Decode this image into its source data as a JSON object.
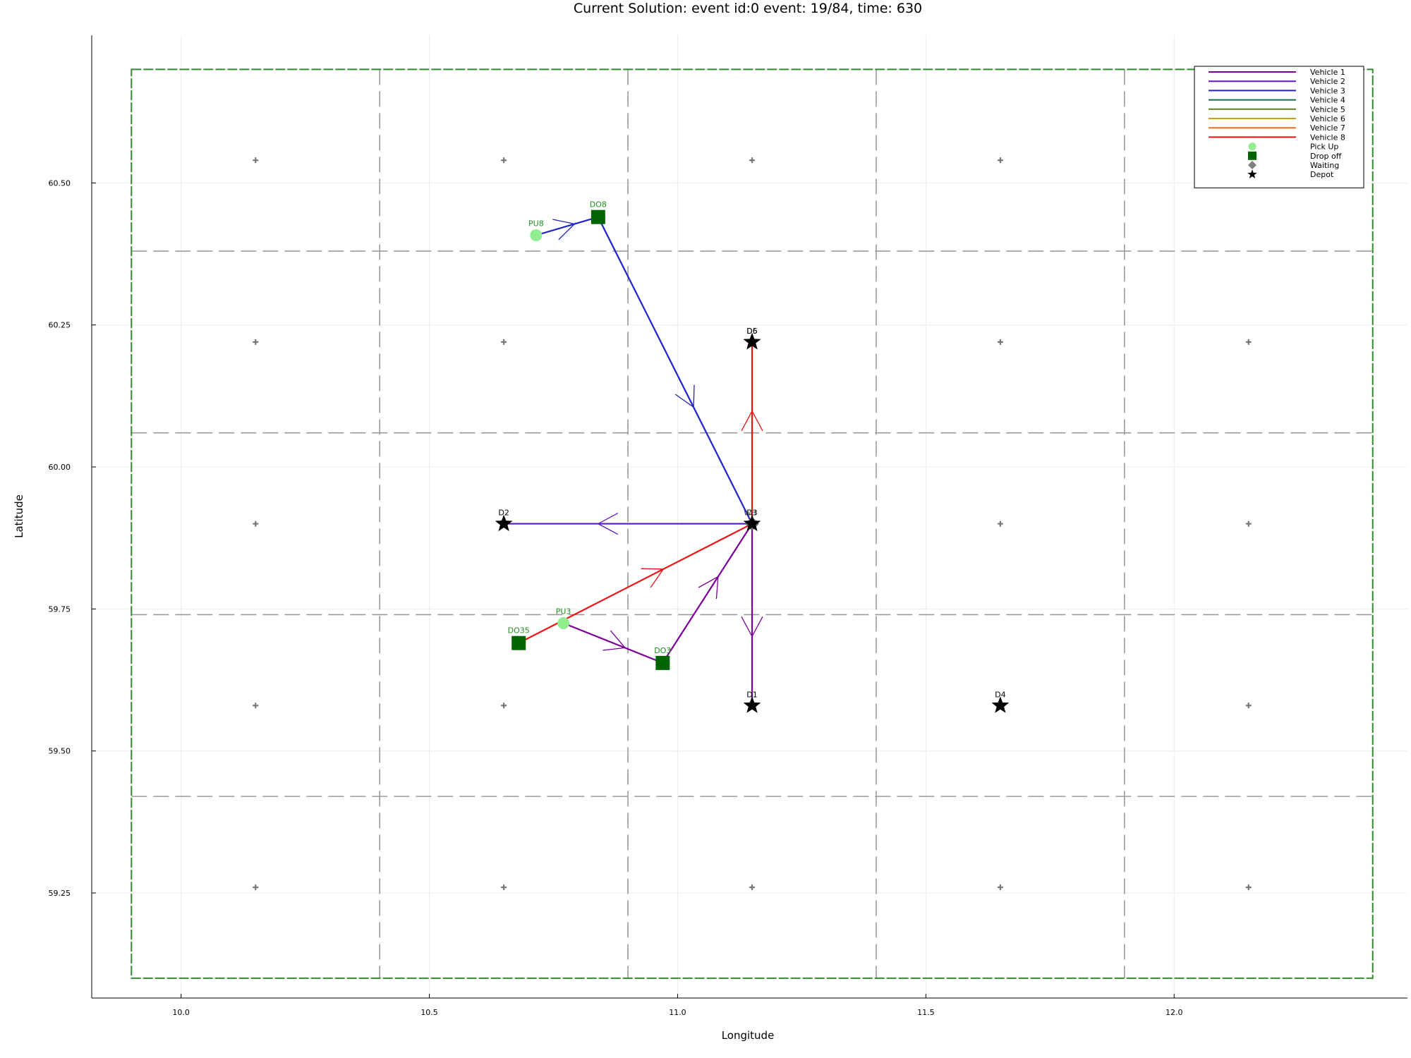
{
  "chart_data": {
    "type": "scatter",
    "title": "Current Solution: event id:0 event: 19/84, time: 630",
    "xlabel": "Longitude",
    "ylabel": "Latitude",
    "xlim": [
      9.82,
      12.47
    ],
    "ylim": [
      59.065,
      60.76
    ],
    "xticks": [
      10.0,
      10.5,
      11.0,
      11.5,
      12.0
    ],
    "xtick_labels": [
      "10.0",
      "10.5",
      "11.0",
      "11.5",
      "12.0"
    ],
    "yticks": [
      59.25,
      59.5,
      59.75,
      60.0,
      60.25,
      60.5
    ],
    "ytick_labels": [
      "59.25",
      "59.50",
      "59.75",
      "60.00",
      "60.25",
      "60.50"
    ],
    "grid": true,
    "legend_position": "top-right",
    "service_area": {
      "x": [
        9.9,
        12.4
      ],
      "y": [
        59.1,
        60.7
      ],
      "color": "#2e8b2e"
    },
    "zone_grid": {
      "x": [
        10.4,
        10.9,
        11.4,
        11.9
      ],
      "y": [
        59.42,
        59.74,
        60.06,
        60.38
      ],
      "color": "#9a9a9a"
    },
    "zone_centers": {
      "x": [
        10.15,
        10.65,
        11.15,
        11.65,
        12.15
      ],
      "y": [
        59.26,
        59.58,
        59.9,
        60.22,
        60.54
      ],
      "color": "#777777"
    },
    "legend": [
      {
        "label": "Vehicle 1",
        "kind": "line",
        "color": "#7b0099"
      },
      {
        "label": "Vehicle 2",
        "kind": "line",
        "color": "#5a17c9"
      },
      {
        "label": "Vehicle 3",
        "kind": "line",
        "color": "#2222cc"
      },
      {
        "label": "Vehicle 4",
        "kind": "line",
        "color": "#1a6b4a"
      },
      {
        "label": "Vehicle 5",
        "kind": "line",
        "color": "#5a7d1a"
      },
      {
        "label": "Vehicle 6",
        "kind": "line",
        "color": "#c9a21a"
      },
      {
        "label": "Vehicle 7",
        "kind": "line",
        "color": "#ee6a1a"
      },
      {
        "label": "Vehicle 8",
        "kind": "line",
        "color": "#ee1111"
      },
      {
        "label": "Pick Up",
        "kind": "circle",
        "color": "#90ee90"
      },
      {
        "label": "Drop off",
        "kind": "square",
        "color": "#006400"
      },
      {
        "label": "Waiting",
        "kind": "diamond",
        "color": "#808080"
      },
      {
        "label": "Depot",
        "kind": "star",
        "color": "#000000"
      }
    ],
    "routes": [
      {
        "vehicle": "Vehicle 1",
        "color": "#7b0099",
        "points": [
          [
            10.77,
            59.725
          ],
          [
            10.97,
            59.655
          ],
          [
            11.15,
            59.9
          ],
          [
            11.15,
            59.58
          ]
        ]
      },
      {
        "vehicle": "Vehicle 2",
        "color": "#5a17c9",
        "points": [
          [
            11.15,
            59.9
          ],
          [
            10.65,
            59.9
          ]
        ]
      },
      {
        "vehicle": "Vehicle 3",
        "color": "#2222cc",
        "points": [
          [
            10.715,
            60.408
          ],
          [
            10.84,
            60.44
          ],
          [
            11.15,
            59.9
          ]
        ]
      },
      {
        "vehicle": "Vehicle 8",
        "color": "#ee1111",
        "points": [
          [
            10.68,
            59.69
          ],
          [
            11.15,
            59.9
          ],
          [
            11.15,
            60.22
          ]
        ]
      }
    ],
    "pickups": [
      {
        "label": "PU8",
        "x": 10.715,
        "y": 60.408
      },
      {
        "label": "PU3",
        "x": 10.77,
        "y": 59.725
      }
    ],
    "dropoffs": [
      {
        "label": "DO8",
        "x": 10.84,
        "y": 60.44
      },
      {
        "label": "DO35",
        "x": 10.68,
        "y": 59.69
      },
      {
        "label": "DO3",
        "x": 10.97,
        "y": 59.655
      }
    ],
    "waiting": [
      {
        "label": "W3",
        "x": 11.15,
        "y": 59.9
      }
    ],
    "depots": [
      {
        "label": "D1",
        "x": 11.15,
        "y": 59.58
      },
      {
        "label": "D2",
        "x": 10.65,
        "y": 59.9
      },
      {
        "label": "D3",
        "x": 11.15,
        "y": 59.9
      },
      {
        "label": "D4",
        "x": 11.65,
        "y": 59.58
      },
      {
        "label": "D5",
        "x": 11.15,
        "y": 60.22
      },
      {
        "label": "D6",
        "x": 11.15,
        "y": 60.22
      }
    ],
    "label_colors": {
      "pickup": "#228b22",
      "dropoff": "#228b22",
      "depot": "#000000",
      "waiting": "#555555"
    }
  }
}
